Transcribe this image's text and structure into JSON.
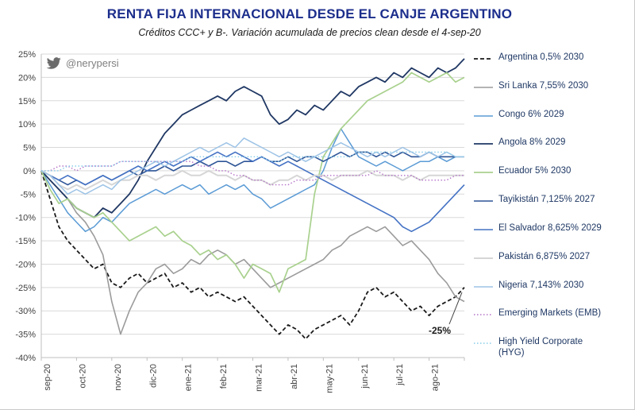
{
  "header": {
    "title": "RENTA FIJA INTERNACIONAL DESDE EL CANJE ARGENTINO",
    "subtitle": "Créditos CCC+ y B-. Variación acumulada de precios clean desde el 4-sep-20"
  },
  "watermark": {
    "handle": "@nerypersi"
  },
  "chart_data": {
    "type": "line",
    "title": "RENTA FIJA INTERNACIONAL DESDE EL CANJE ARGENTINO",
    "subtitle": "Créditos CCC+ y B-. Variación acumulada de precios clean desde el 4-sep-20",
    "ylim": [
      -40,
      25
    ],
    "y_tick_step": 5,
    "y_ticks": [
      "25%",
      "20%",
      "15%",
      "10%",
      "5%",
      "0%",
      "-5%",
      "-10%",
      "-15%",
      "-20%",
      "-25%",
      "-30%",
      "-35%",
      "-40%"
    ],
    "x_labels": [
      "sep-20",
      "oct-20",
      "nov-20",
      "dic-20",
      "ene-21",
      "feb-21",
      "mar-21",
      "abr-21",
      "may-21",
      "jun-21",
      "jul-21",
      "ago-21"
    ],
    "grid": "horizontal",
    "legend_position": "right",
    "annotation": {
      "text": "-25%",
      "target_series": "argentina",
      "target_value": -25
    },
    "series": [
      {
        "id": "argentina",
        "name": "Argentina 0,5% 2030",
        "color": "#1a1a1a",
        "dash": "5,3",
        "width": 1.8,
        "values": [
          0,
          -6,
          -12,
          -15,
          -17,
          -19,
          -21,
          -20,
          -24,
          -25,
          -23,
          -22,
          -24,
          -23,
          -22,
          -25,
          -24,
          -26,
          -25,
          -27,
          -26,
          -27,
          -28,
          -27,
          -29,
          -31,
          -33,
          -35,
          -33,
          -34,
          -36,
          -34,
          -33,
          -32,
          -31,
          -33,
          -30,
          -26,
          -25,
          -27,
          -26,
          -28,
          -30,
          -29,
          -31,
          -29,
          -28,
          -27,
          -25
        ]
      },
      {
        "id": "sri-lanka",
        "name": "Sri Lanka 7,55% 2030",
        "color": "#9b9b9b",
        "width": 1.6,
        "values": [
          0,
          -2,
          -4,
          -6,
          -9,
          -11,
          -14,
          -18,
          -28,
          -35,
          -30,
          -26,
          -24,
          -21,
          -20,
          -22,
          -21,
          -19,
          -20,
          -18,
          -17,
          -18,
          -20,
          -19,
          -21,
          -23,
          -25,
          -24,
          -23,
          -22,
          -21,
          -20,
          -19,
          -17,
          -16,
          -14,
          -13,
          -12,
          -13,
          -12,
          -14,
          -16,
          -15,
          -17,
          -19,
          -22,
          -24,
          -27,
          -28
        ]
      },
      {
        "id": "congo",
        "name": "Congo 6% 2029",
        "color": "#5b9bd5",
        "width": 1.5,
        "values": [
          0,
          -3,
          -6,
          -9,
          -11,
          -13,
          -12,
          -10,
          -11,
          -9,
          -7,
          -6,
          -5,
          -4,
          -5,
          -4,
          -3,
          -4,
          -3,
          -5,
          -4,
          -3,
          -4,
          -3,
          -5,
          -6,
          -8,
          -7,
          -6,
          -5,
          -4,
          -3,
          0,
          5,
          9,
          6,
          3,
          2,
          1,
          2,
          1,
          0,
          1,
          2,
          2,
          3,
          2,
          3,
          3
        ]
      },
      {
        "id": "angola",
        "name": "Angola 8% 2029",
        "color": "#203864",
        "width": 1.8,
        "values": [
          0,
          -2,
          -4,
          -6,
          -8,
          -9,
          -10,
          -8,
          -9,
          -7,
          -5,
          -2,
          2,
          5,
          8,
          10,
          12,
          13,
          14,
          15,
          16,
          15,
          17,
          18,
          17,
          16,
          12,
          10,
          11,
          13,
          12,
          14,
          13,
          15,
          17,
          16,
          18,
          19,
          20,
          19,
          21,
          20,
          22,
          21,
          20,
          22,
          21,
          22,
          24
        ]
      },
      {
        "id": "ecuador",
        "name": "Ecuador 5% 2030",
        "color": "#a9d18e",
        "width": 1.7,
        "values": [
          0,
          -4,
          -7,
          -6,
          -8,
          -9,
          -10,
          -9,
          -11,
          -13,
          -15,
          -14,
          -13,
          -12,
          -14,
          -13,
          -15,
          -16,
          -18,
          -17,
          -19,
          -18,
          -20,
          -23,
          -20,
          -21,
          -22,
          -26,
          -21,
          -20,
          -19,
          -5,
          3,
          6,
          9,
          11,
          13,
          15,
          16,
          17,
          18,
          19,
          21,
          20,
          19,
          20,
          21,
          19,
          20
        ]
      },
      {
        "id": "tayikistan",
        "name": "Tayikistán 7,125% 2027",
        "color": "#2e5597",
        "width": 1.6,
        "values": [
          0,
          -1,
          -2,
          -3,
          -2,
          -3,
          -2,
          -1,
          -2,
          -1,
          0,
          -1,
          0,
          0,
          1,
          0,
          1,
          1,
          2,
          1,
          2,
          2,
          1,
          2,
          2,
          3,
          2,
          2,
          3,
          2,
          3,
          3,
          2,
          3,
          4,
          3,
          4,
          4,
          3,
          4,
          3,
          4,
          3,
          3,
          4,
          3,
          3,
          3,
          3
        ]
      },
      {
        "id": "el-salvador",
        "name": "El Salvador 8,625% 2029",
        "color": "#4472c4",
        "width": 1.6,
        "values": [
          0,
          -1,
          -2,
          -1,
          -2,
          -3,
          -2,
          -1,
          -2,
          -1,
          0,
          1,
          0,
          1,
          2,
          1,
          2,
          3,
          2,
          3,
          4,
          3,
          4,
          3,
          2,
          3,
          2,
          1,
          2,
          1,
          0,
          -1,
          -2,
          -3,
          -4,
          -5,
          -6,
          -7,
          -8,
          -9,
          -10,
          -12,
          -13,
          -12,
          -11,
          -9,
          -7,
          -5,
          -3
        ]
      },
      {
        "id": "pakistan",
        "name": "Pakistán 6,875% 2027",
        "color": "#d6d6d6",
        "width": 2,
        "values": [
          0,
          -1,
          -3,
          -4,
          -3,
          -4,
          -3,
          -2,
          -3,
          -2,
          -2,
          -1,
          -1,
          -2,
          -1,
          -1,
          0,
          -1,
          -1,
          0,
          -1,
          -1,
          -2,
          -1,
          -2,
          -2,
          -3,
          -2,
          -2,
          -1,
          -2,
          -1,
          -1,
          -2,
          -1,
          -1,
          -1,
          0,
          -1,
          -1,
          -1,
          -2,
          -1,
          -2,
          -1,
          -1,
          -1,
          -1,
          -1
        ]
      },
      {
        "id": "nigeria",
        "name": "Nigeria 7,143% 2030",
        "color": "#9dc3e6",
        "width": 1.5,
        "values": [
          0,
          -1,
          -3,
          -5,
          -4,
          -5,
          -4,
          -3,
          -4,
          -2,
          -1,
          0,
          1,
          2,
          1,
          2,
          3,
          4,
          5,
          4,
          5,
          6,
          5,
          7,
          6,
          5,
          4,
          3,
          4,
          3,
          2,
          3,
          4,
          5,
          6,
          5,
          4,
          3,
          4,
          3,
          4,
          5,
          4,
          3,
          4,
          3,
          4,
          3,
          3
        ]
      },
      {
        "id": "emb",
        "name": "Emerging Markets (EMB)",
        "color": "#b573c9",
        "dash": "1.5,2.5",
        "width": 1.4,
        "values": [
          0,
          0,
          1,
          1,
          0,
          1,
          1,
          1,
          1,
          2,
          2,
          2,
          2,
          2,
          2,
          2,
          2,
          2,
          1,
          1,
          0,
          0,
          -1,
          -1,
          -2,
          -2,
          -3,
          -3,
          -3,
          -2,
          -2,
          -2,
          -1,
          -1,
          -1,
          -1,
          -1,
          -1,
          0,
          -1,
          -1,
          -1,
          -1,
          -2,
          -2,
          -2,
          -2,
          -1,
          -1
        ]
      },
      {
        "id": "hyg",
        "name": "High Yield Corporate (HYG)",
        "color": "#86cdea",
        "dash": "1.5,2.5",
        "width": 1.4,
        "values": [
          0,
          0,
          0,
          1,
          1,
          1,
          1,
          1,
          1,
          2,
          2,
          2,
          2,
          2,
          2,
          2,
          2,
          3,
          3,
          3,
          3,
          3,
          3,
          3,
          3,
          3,
          2,
          2,
          3,
          3,
          3,
          3,
          3,
          3,
          3,
          3,
          4,
          4,
          4,
          4,
          4,
          4,
          4,
          4,
          4,
          4,
          4,
          3,
          3
        ]
      }
    ]
  }
}
